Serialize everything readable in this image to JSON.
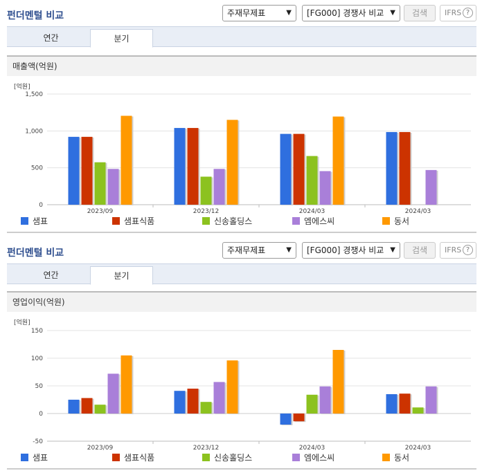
{
  "panels": [
    {
      "title": "펀더멘털 비교",
      "select1": "주재무제표",
      "select2": "[FG000] 경쟁사 비교",
      "search_label": "검색",
      "ifrs_label": "IFRS",
      "help_glyph": "?",
      "tabs": [
        "연간",
        "분기"
      ],
      "active_tab": 1,
      "subtitle": "매출액(억원)",
      "unit": "[억원]"
    },
    {
      "title": "펀더멘털 비교",
      "select1": "주재무제표",
      "select2": "[FG000] 경쟁사 비교",
      "search_label": "검색",
      "ifrs_label": "IFRS",
      "help_glyph": "?",
      "tabs": [
        "연간",
        "분기"
      ],
      "active_tab": 1,
      "subtitle": "영업이익(억원)",
      "unit": "[억원]"
    }
  ],
  "colors": {
    "샘표": "#2f6fdf",
    "샘표식품": "#cc3300",
    "신송홀딩스": "#8cc21f",
    "엠에스씨": "#a97fd9",
    "동서": "#ff9900"
  },
  "chart_data": [
    {
      "type": "bar",
      "categories": [
        "2023/09",
        "2023/12",
        "2024/03",
        "2024/03"
      ],
      "ylim": [
        0,
        1500
      ],
      "yticks": [
        0,
        500,
        1000,
        1500
      ],
      "ytick_labels": [
        "0",
        "500",
        "1,000",
        "1,500"
      ],
      "ylabel": "[억원]",
      "series": [
        {
          "name": "샘표",
          "values": [
            920,
            1040,
            960,
            985
          ]
        },
        {
          "name": "샘표식품",
          "values": [
            920,
            1040,
            960,
            985
          ]
        },
        {
          "name": "신송홀딩스",
          "values": [
            575,
            380,
            660,
            null
          ]
        },
        {
          "name": "엠에스씨",
          "values": [
            485,
            485,
            455,
            470
          ]
        },
        {
          "name": "동서",
          "values": [
            1205,
            1150,
            1195,
            null
          ]
        }
      ]
    },
    {
      "type": "bar",
      "categories": [
        "2023/09",
        "2023/12",
        "2024/03",
        "2024/03"
      ],
      "ylim": [
        -50,
        150
      ],
      "yticks": [
        -50,
        0,
        50,
        100,
        150
      ],
      "ytick_labels": [
        "-50",
        "0",
        "50",
        "100",
        "150"
      ],
      "ylabel": "[억원]",
      "series": [
        {
          "name": "샘표",
          "values": [
            25,
            41,
            -20,
            35
          ]
        },
        {
          "name": "샘표식품",
          "values": [
            28,
            45,
            -14,
            36
          ]
        },
        {
          "name": "신송홀딩스",
          "values": [
            16,
            21,
            34,
            11
          ]
        },
        {
          "name": "엠에스씨",
          "values": [
            72,
            57,
            49,
            49
          ]
        },
        {
          "name": "동서",
          "values": [
            105,
            96,
            115,
            null
          ]
        }
      ]
    }
  ]
}
